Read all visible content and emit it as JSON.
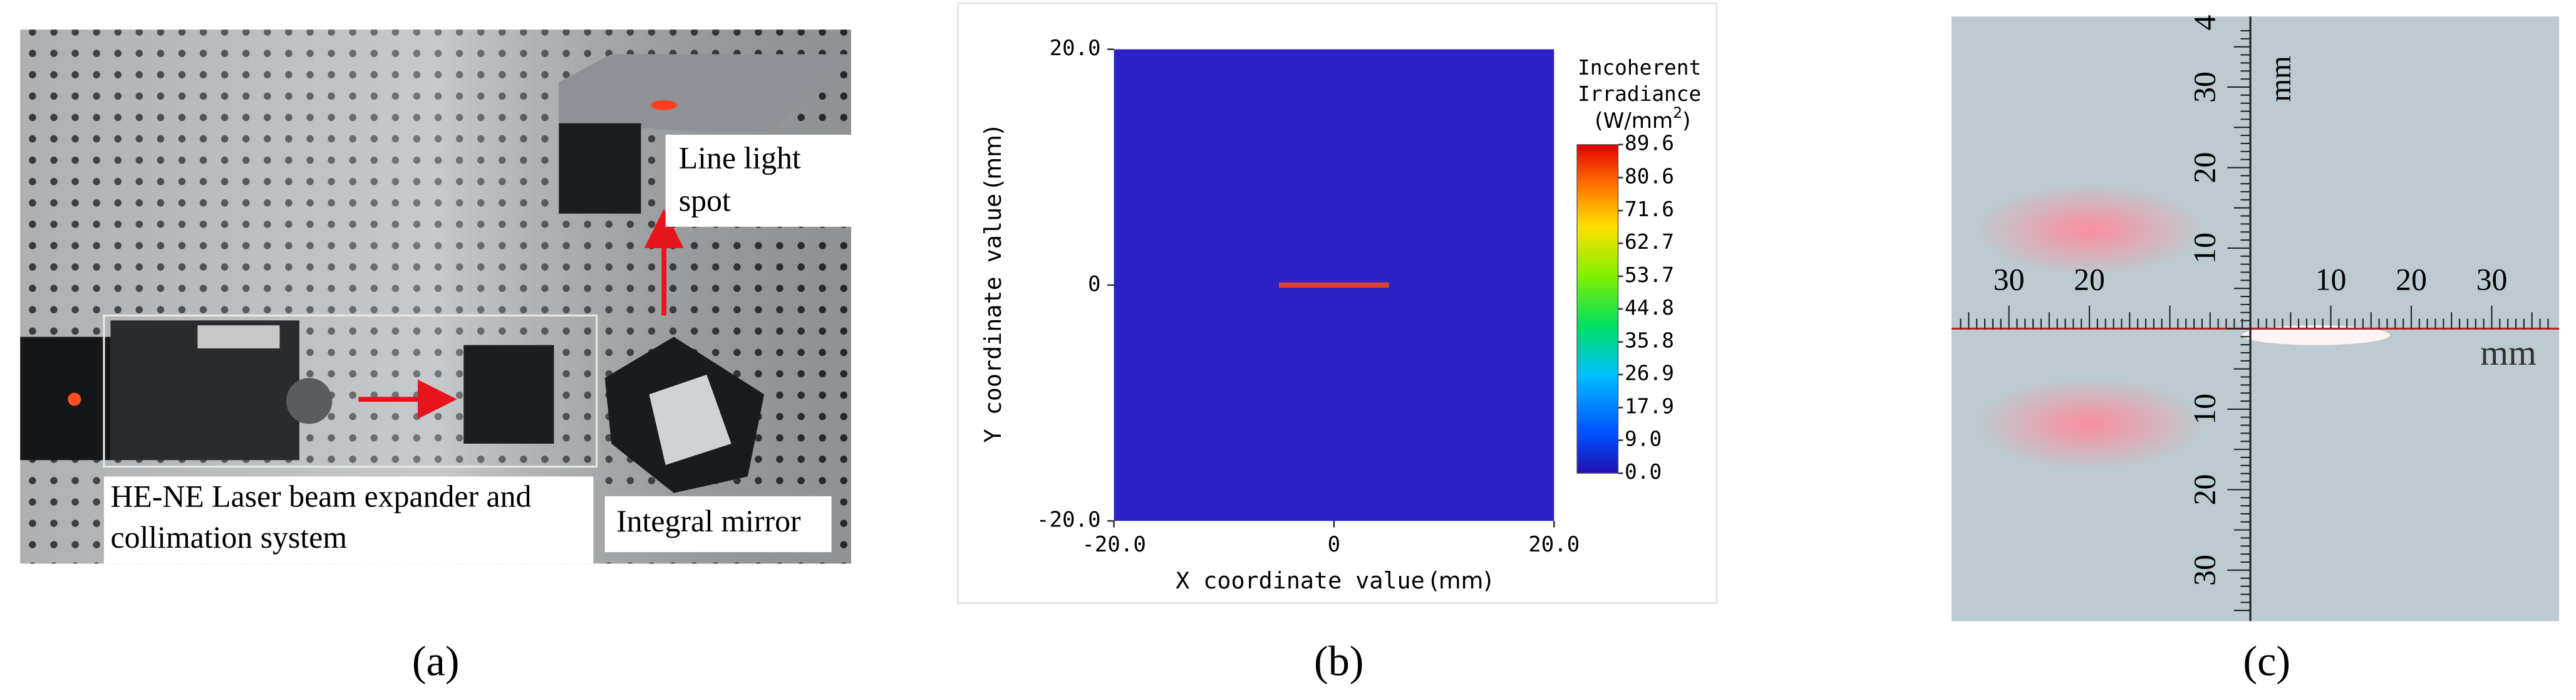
{
  "panel_a": {
    "label": "(a)",
    "annotations": {
      "line_spot": [
        "Line light",
        "spot"
      ],
      "laser": [
        "HE-NE Laser beam expander and",
        "collimation system"
      ],
      "mirror": "Integral mirror"
    }
  },
  "chart_data": {
    "type": "heatmap",
    "label": "(b)",
    "xlabel": "X coordinate value",
    "xunit": "(mm)",
    "ylabel": "Y coordinate value",
    "yunit": "(mm)",
    "xlim": [
      -20,
      20
    ],
    "ylim": [
      -20,
      20
    ],
    "xticks": [
      {
        "value": -20,
        "label": "-20.0"
      },
      0,
      {
        "value": 20,
        "label": "20.0"
      }
    ],
    "yticks": [
      {
        "value": -20,
        "label": "-20.0"
      },
      0,
      {
        "value": 20,
        "label": "20.0"
      }
    ],
    "line_spot": {
      "x": [
        -5,
        5
      ],
      "y": 0
    },
    "colorbar": {
      "title": [
        "Incoherent",
        "Irradiance"
      ],
      "unit": "(W/mm",
      "unit_sup": "2",
      "unit_close": ")",
      "lim": [
        0,
        89.6
      ],
      "ticks": [
        89.6,
        80.6,
        71.6,
        62.7,
        53.7,
        44.8,
        35.8,
        26.9,
        17.9,
        {
          "value": 9,
          "label": "9.0"
        },
        {
          "value": 0,
          "label": "0.0"
        }
      ]
    }
  },
  "panel_c": {
    "label": "(c)",
    "horizontal_labels_left": [
      "30",
      "20"
    ],
    "horizontal_labels_right": [
      "10",
      "20",
      "30"
    ],
    "vertical_labels_up": [
      "4",
      "30",
      "20",
      "10"
    ],
    "vertical_labels_down": [
      "10",
      "20",
      "30"
    ],
    "unit_h": "mm",
    "unit_v": "mm"
  }
}
